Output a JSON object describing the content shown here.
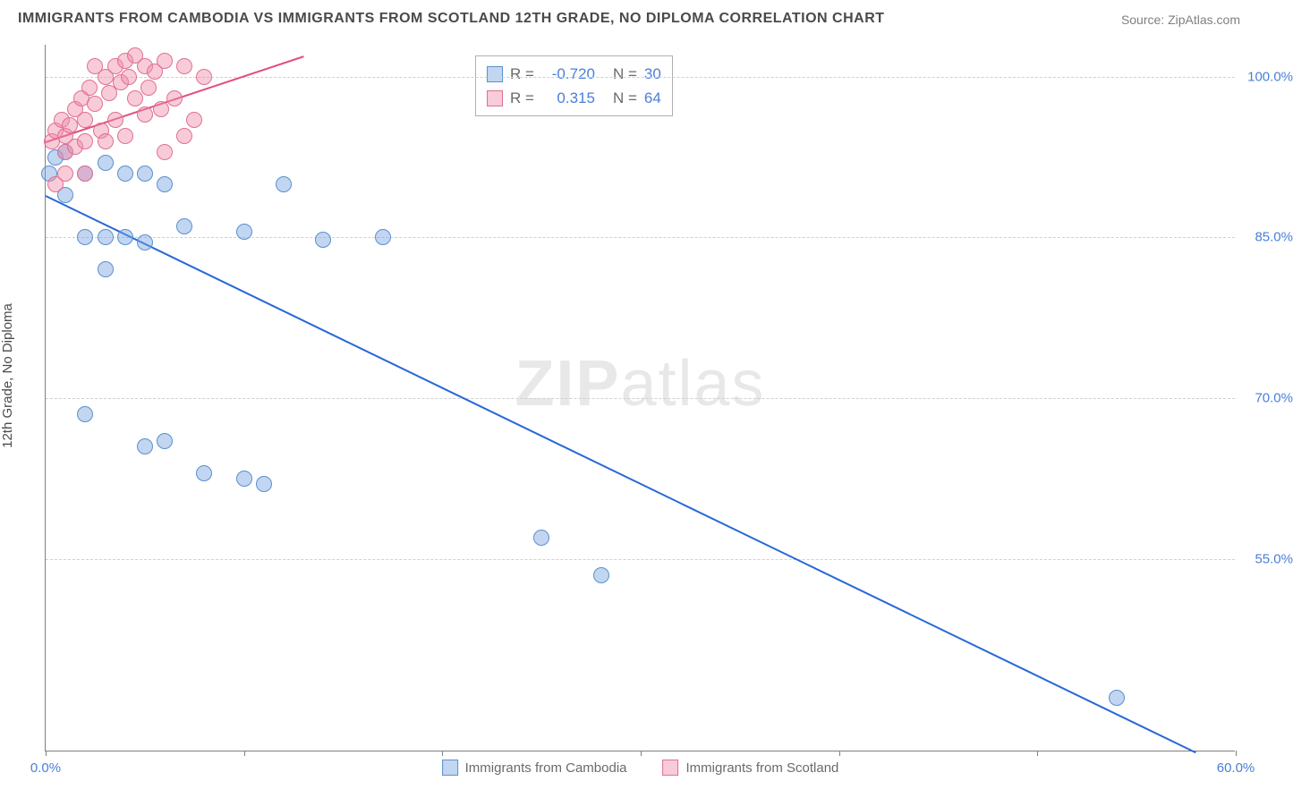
{
  "title": "IMMIGRANTS FROM CAMBODIA VS IMMIGRANTS FROM SCOTLAND 12TH GRADE, NO DIPLOMA CORRELATION CHART",
  "source": "Source: ZipAtlas.com",
  "y_axis_label": "12th Grade, No Diploma",
  "watermark": {
    "bold": "ZIP",
    "rest": "atlas"
  },
  "chart": {
    "type": "scatter",
    "xlim": [
      0,
      60
    ],
    "ylim": [
      37,
      103
    ],
    "x_ticks": [
      0,
      10,
      20,
      30,
      40,
      50,
      60
    ],
    "x_tick_labels": {
      "0": "0.0%",
      "60": "60.0%"
    },
    "y_ticks": [
      55,
      70,
      85,
      100
    ],
    "y_tick_labels": {
      "55": "55.0%",
      "70": "70.0%",
      "85": "85.0%",
      "100": "100.0%"
    },
    "grid_color": "#d0d0d0",
    "background_color": "#ffffff",
    "axis_color": "#808080",
    "series": [
      {
        "name": "Immigrants from Cambodia",
        "color_fill": "rgba(120,165,225,0.45)",
        "color_stroke": "#5a8fd0",
        "marker_radius": 9,
        "trendline": {
          "x1": 0,
          "y1": 89,
          "x2": 58,
          "y2": 37,
          "color": "#2568d8",
          "width": 2
        },
        "points": [
          [
            0.2,
            91
          ],
          [
            0.5,
            92.5
          ],
          [
            1,
            93
          ],
          [
            1,
            89
          ],
          [
            2,
            91
          ],
          [
            3,
            92
          ],
          [
            4,
            91
          ],
          [
            5,
            91
          ],
          [
            2,
            85
          ],
          [
            3,
            85
          ],
          [
            4,
            85
          ],
          [
            5,
            84.5
          ],
          [
            6,
            90
          ],
          [
            7,
            86
          ],
          [
            10,
            85.5
          ],
          [
            12,
            90
          ],
          [
            14,
            84.8
          ],
          [
            17,
            85
          ],
          [
            3,
            82
          ],
          [
            2,
            68.5
          ],
          [
            5,
            65.5
          ],
          [
            6,
            66
          ],
          [
            8,
            63
          ],
          [
            10,
            62.5
          ],
          [
            11,
            62
          ],
          [
            25,
            57
          ],
          [
            28,
            53.5
          ],
          [
            54,
            42
          ]
        ]
      },
      {
        "name": "Immigrants from Scotland",
        "color_fill": "rgba(240,140,170,0.45)",
        "color_stroke": "#e07090",
        "marker_radius": 9,
        "trendline": {
          "x1": 0,
          "y1": 94,
          "x2": 13,
          "y2": 102,
          "color": "#e05080",
          "width": 2
        },
        "points": [
          [
            0.3,
            94
          ],
          [
            0.5,
            95
          ],
          [
            0.8,
            96
          ],
          [
            1,
            94.5
          ],
          [
            1,
            93
          ],
          [
            1.2,
            95.5
          ],
          [
            1.5,
            97
          ],
          [
            1.5,
            93.5
          ],
          [
            1.8,
            98
          ],
          [
            2,
            94
          ],
          [
            2,
            96
          ],
          [
            2.2,
            99
          ],
          [
            2.5,
            97.5
          ],
          [
            2.5,
            101
          ],
          [
            2.8,
            95
          ],
          [
            3,
            100
          ],
          [
            3,
            94
          ],
          [
            3.2,
            98.5
          ],
          [
            3.5,
            101
          ],
          [
            3.5,
            96
          ],
          [
            3.8,
            99.5
          ],
          [
            4,
            101.5
          ],
          [
            4,
            94.5
          ],
          [
            4.2,
            100
          ],
          [
            4.5,
            98
          ],
          [
            4.5,
            102
          ],
          [
            5,
            101
          ],
          [
            5,
            96.5
          ],
          [
            5.2,
            99
          ],
          [
            5.5,
            100.5
          ],
          [
            5.8,
            97
          ],
          [
            6,
            101.5
          ],
          [
            6,
            93
          ],
          [
            6.5,
            98
          ],
          [
            7,
            94.5
          ],
          [
            7,
            101
          ],
          [
            7.5,
            96
          ],
          [
            8,
            100
          ],
          [
            0.5,
            90
          ],
          [
            1,
            91
          ],
          [
            2,
            91
          ]
        ]
      }
    ],
    "legend_box": {
      "rows": [
        {
          "swatch_fill": "rgba(120,165,225,0.45)",
          "swatch_stroke": "#5a8fd0",
          "r_label": "R =",
          "r_value": "-0.720",
          "n_label": "N =",
          "n_value": "30"
        },
        {
          "swatch_fill": "rgba(240,140,170,0.45)",
          "swatch_stroke": "#e07090",
          "r_label": "R =",
          "r_value": "0.315",
          "n_label": "N =",
          "n_value": "64"
        }
      ]
    },
    "bottom_legend": [
      {
        "swatch_fill": "rgba(120,165,225,0.45)",
        "swatch_stroke": "#5a8fd0",
        "label": "Immigrants from Cambodia"
      },
      {
        "swatch_fill": "rgba(240,140,170,0.45)",
        "swatch_stroke": "#e07090",
        "label": "Immigrants from Scotland"
      }
    ]
  }
}
